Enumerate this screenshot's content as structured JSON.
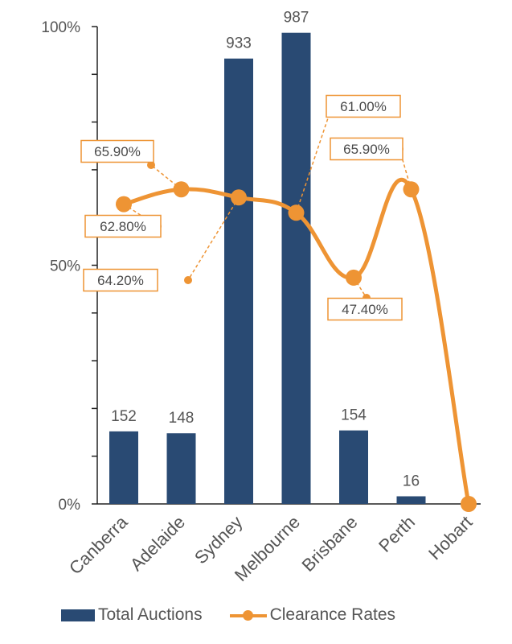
{
  "chart_data": {
    "type": "bar",
    "categories": [
      "Canberra",
      "Adelaide",
      "Sydney",
      "Melbourne",
      "Brisbane",
      "Perth",
      "Hobart"
    ],
    "series": [
      {
        "name": "Total Auctions",
        "type": "bar",
        "values": [
          152,
          148,
          933,
          987,
          154,
          16,
          0
        ],
        "value_labels": [
          "152",
          "148",
          "933",
          "987",
          "154",
          "16",
          ""
        ]
      },
      {
        "name": "Clearance Rates",
        "type": "line",
        "values": [
          62.8,
          65.9,
          64.2,
          61.0,
          47.4,
          65.9,
          0
        ],
        "value_labels": [
          "62.80%",
          "65.90%",
          "64.20%",
          "61.00%",
          "47.40%",
          "65.90%",
          ""
        ]
      }
    ],
    "y_axis": {
      "ticks": [
        "0%",
        "50%",
        "100%"
      ],
      "ylim": [
        0,
        100
      ]
    },
    "bar_max": 1000,
    "colors": {
      "bars": "#294a73",
      "line": "#ee9434"
    },
    "legend": {
      "position": "bottom",
      "items": [
        "Total Auctions",
        "Clearance Rates"
      ]
    },
    "grid": false
  }
}
